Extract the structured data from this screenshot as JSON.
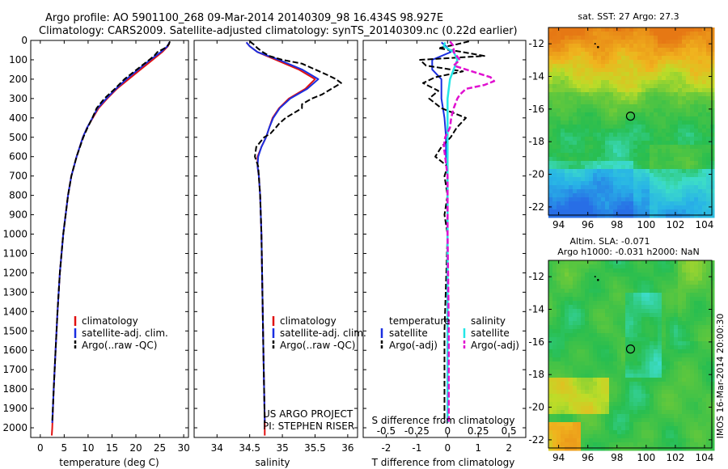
{
  "header": {
    "line1": "Argo profile: AO 5901100_268 09-Mar-2014 20140309_98 16.434S 98.927E",
    "line2": "Climatology: CARS2009. Satellite-adjusted climatology: synTS_20140309.nc (0.22d earlier)"
  },
  "colors": {
    "climatology": "#e01010",
    "satellite": "#1a2ee0",
    "argo": "#000000",
    "satellite_cyan": "#22e6e6",
    "argo_magenta": "#e010d0"
  },
  "chart_data": [
    {
      "type": "line",
      "name": "temperature-profile",
      "xlabel": "temperature (deg C)",
      "xlim": [
        -2,
        31
      ],
      "xticks": [
        "0",
        "5",
        "10",
        "15",
        "20",
        "25",
        "30"
      ],
      "ylim": [
        0,
        2050
      ],
      "yticks": [
        "0",
        "100",
        "200",
        "300",
        "400",
        "500",
        "600",
        "700",
        "800",
        "900",
        "1000",
        "1100",
        "1200",
        "1300",
        "1400",
        "1500",
        "1600",
        "1700",
        "1800",
        "1900",
        "2000"
      ],
      "legend": [
        "climatology",
        "satellite-adj. clim.",
        "Argo(..raw -QC)"
      ],
      "series": [
        {
          "name": "climatology",
          "depth": [
            10,
            30,
            60,
            100,
            150,
            200,
            250,
            300,
            350,
            400,
            450,
            500,
            600,
            700,
            800,
            1000,
            1200,
            1400,
            1600,
            1800,
            2000,
            2040
          ],
          "values": [
            27.0,
            26.7,
            25.5,
            23.5,
            21.0,
            18.5,
            16.0,
            14.0,
            12.2,
            11.0,
            9.8,
            8.9,
            7.6,
            6.5,
            5.8,
            4.8,
            4.1,
            3.6,
            3.2,
            2.8,
            2.5,
            2.4
          ]
        },
        {
          "name": "satellite",
          "depth": [
            10,
            30,
            60,
            100,
            150,
            200,
            250,
            300,
            350,
            400,
            450,
            500,
            600,
            700,
            800,
            1000,
            1200,
            1400,
            1600,
            1800,
            1975
          ],
          "values": [
            27.0,
            26.6,
            25.2,
            23.0,
            20.5,
            18.0,
            15.8,
            13.8,
            12.0,
            10.9,
            9.8,
            8.9,
            7.6,
            6.5,
            5.8,
            4.8,
            4.1,
            3.6,
            3.2,
            2.8,
            2.5
          ]
        },
        {
          "name": "argo",
          "depth": [
            5,
            20,
            40,
            60,
            80,
            100,
            150,
            200,
            250,
            300,
            350,
            400,
            450,
            500,
            600,
            700,
            800,
            1000,
            1200,
            1400,
            1600,
            1800,
            1975
          ],
          "values": [
            27.1,
            26.9,
            26.0,
            24.5,
            23.8,
            22.8,
            20.2,
            17.6,
            15.6,
            13.4,
            11.8,
            10.9,
            9.9,
            9.0,
            7.6,
            6.5,
            5.8,
            4.8,
            4.1,
            3.6,
            3.2,
            2.8,
            2.5
          ]
        }
      ]
    },
    {
      "type": "line",
      "name": "salinity-profile",
      "xlabel": "salinity",
      "xlim": [
        33.65,
        36.15
      ],
      "xticks": [
        "34",
        "34.5",
        "35",
        "35.5",
        "36"
      ],
      "ylim": [
        0,
        2050
      ],
      "legend": [
        "climatology",
        "satellite-adj. clim.",
        "Argo(..raw -QC)"
      ],
      "annotations": [
        "US ARGO PROJECT",
        "PI: STEPHEN RISER"
      ],
      "series": [
        {
          "name": "climatology",
          "depth": [
            10,
            30,
            60,
            100,
            150,
            200,
            250,
            300,
            350,
            400,
            450,
            500,
            550,
            600,
            650,
            700,
            800,
            1000,
            1200,
            1400,
            1600,
            1800,
            1950,
            2040
          ],
          "values": [
            34.45,
            34.5,
            34.62,
            34.9,
            35.25,
            35.5,
            35.35,
            35.1,
            34.95,
            34.85,
            34.8,
            34.75,
            34.68,
            34.62,
            34.62,
            34.64,
            34.66,
            34.68,
            34.69,
            34.7,
            34.71,
            34.72,
            34.73,
            34.73
          ]
        },
        {
          "name": "satellite",
          "depth": [
            10,
            30,
            60,
            100,
            150,
            200,
            250,
            300,
            350,
            400,
            450,
            500,
            550,
            600,
            650,
            700,
            800,
            1000,
            1200,
            1400,
            1600,
            1800,
            1975
          ],
          "values": [
            34.45,
            34.5,
            34.62,
            34.95,
            35.3,
            35.55,
            35.38,
            35.12,
            34.96,
            34.86,
            34.8,
            34.75,
            34.68,
            34.63,
            34.62,
            34.64,
            34.66,
            34.68,
            34.69,
            34.7,
            34.71,
            34.72,
            34.73
          ]
        },
        {
          "name": "argo",
          "depth": [
            5,
            20,
            40,
            60,
            80,
            100,
            120,
            150,
            180,
            200,
            220,
            250,
            280,
            300,
            330,
            350,
            380,
            400,
            430,
            450,
            480,
            500,
            550,
            600,
            650,
            700,
            800,
            1000,
            1200,
            1400,
            1600,
            1800,
            1975
          ],
          "values": [
            34.5,
            34.56,
            34.62,
            34.7,
            34.8,
            35.0,
            35.3,
            35.5,
            35.7,
            35.82,
            35.9,
            35.75,
            35.6,
            35.45,
            35.3,
            35.3,
            35.15,
            35.05,
            34.95,
            34.9,
            34.82,
            34.72,
            34.6,
            34.58,
            34.63,
            34.64,
            34.66,
            34.68,
            34.69,
            34.7,
            34.71,
            34.72,
            34.73
          ]
        }
      ]
    },
    {
      "type": "line",
      "name": "difference-profile",
      "xlabel": "T difference from climatology",
      "xlabel_top": "S difference from climatology",
      "xlim": [
        -2.75,
        2.55
      ],
      "xticks": [
        "-2",
        "-1",
        "0",
        "1",
        "2"
      ],
      "xticks_top": [
        "-0.5",
        "-0.25",
        "0",
        "0.25",
        "0.5"
      ],
      "ylim": [
        0,
        2050
      ],
      "legend_temperature": {
        "title": "temperature",
        "items": [
          "satellite",
          "Argo(-adj)"
        ]
      },
      "legend_salinity": {
        "title": "salinity",
        "items": [
          "satellite",
          "Argo(-adj)"
        ]
      },
      "series": [
        {
          "name": "T satellite",
          "depth": [
            10,
            30,
            60,
            100,
            150,
            200,
            250,
            300,
            400,
            500,
            600,
            700,
            800,
            1000,
            1500,
            1975
          ],
          "values": [
            -0.2,
            -0.05,
            0.1,
            -0.5,
            -0.5,
            -0.2,
            -0.2,
            -0.2,
            -0.1,
            -0.05,
            -0.05,
            0,
            0,
            0,
            0,
            0
          ]
        },
        {
          "name": "T argo",
          "depth": [
            5,
            20,
            40,
            60,
            80,
            100,
            130,
            160,
            190,
            220,
            260,
            300,
            350,
            400,
            450,
            500,
            550,
            600,
            650,
            700,
            800,
            900,
            1000,
            1500,
            1975
          ],
          "values": [
            0.7,
            0.3,
            -0.3,
            0.5,
            1.2,
            -0.9,
            -0.7,
            0.5,
            -0.4,
            -0.8,
            -0.3,
            -0.6,
            -0.2,
            0.6,
            0.3,
            0.1,
            -0.2,
            -0.4,
            0,
            -0.1,
            0,
            -0.1,
            0,
            -0.1,
            -0.1
          ]
        },
        {
          "name": "S satellite",
          "depth": [
            10,
            30,
            60,
            100,
            150,
            200,
            250,
            300,
            400,
            500,
            600,
            700,
            800,
            1000,
            1500,
            1975
          ],
          "values": [
            -0.02,
            -0.03,
            0.05,
            0.08,
            0.05,
            0.02,
            0.01,
            0.0,
            0.0,
            0.0,
            0.0,
            0.0,
            0.0,
            0.0,
            0.0,
            0.0
          ]
        },
        {
          "name": "S argo",
          "depth": [
            5,
            30,
            60,
            100,
            130,
            160,
            190,
            210,
            230,
            250,
            280,
            300,
            350,
            400,
            450,
            500,
            550,
            600,
            700,
            800,
            1000,
            1500,
            1975
          ],
          "values": [
            0.02,
            0.05,
            0.05,
            0.1,
            0.05,
            0.2,
            0.35,
            0.38,
            0.3,
            0.15,
            0.1,
            0.08,
            0.05,
            0.03,
            0.02,
            -0.02,
            -0.03,
            -0.02,
            0,
            0,
            0,
            0.01,
            0.01
          ]
        }
      ]
    },
    {
      "type": "heatmap",
      "name": "sst-map",
      "title": "sat. SST: 27 Argo: 27.3",
      "xlim": [
        93.3,
        104.5
      ],
      "ylim": [
        -22.5,
        -11.0
      ],
      "xticks": [
        "94",
        "96",
        "98",
        "100",
        "102",
        "104"
      ],
      "yticks": [
        "-12",
        "-14",
        "-16",
        "-18",
        "-20",
        "-22"
      ],
      "marker": {
        "lon": 98.927,
        "lat": -16.434
      }
    },
    {
      "type": "heatmap",
      "name": "sla-map",
      "title_line1": "Altim. SLA: -0.071",
      "title_line2": "Argo h1000: -0.031 h2000: NaN",
      "side_label": "IMOS 16-Mar-2014 20:00:30",
      "xlim": [
        93.3,
        104.5
      ],
      "ylim": [
        -22.5,
        -11.0
      ],
      "xticks": [
        "94",
        "96",
        "98",
        "100",
        "102",
        "104"
      ],
      "yticks": [
        "-12",
        "-14",
        "-16",
        "-18",
        "-20",
        "-22"
      ],
      "marker": {
        "lon": 98.927,
        "lat": -16.434
      }
    }
  ]
}
